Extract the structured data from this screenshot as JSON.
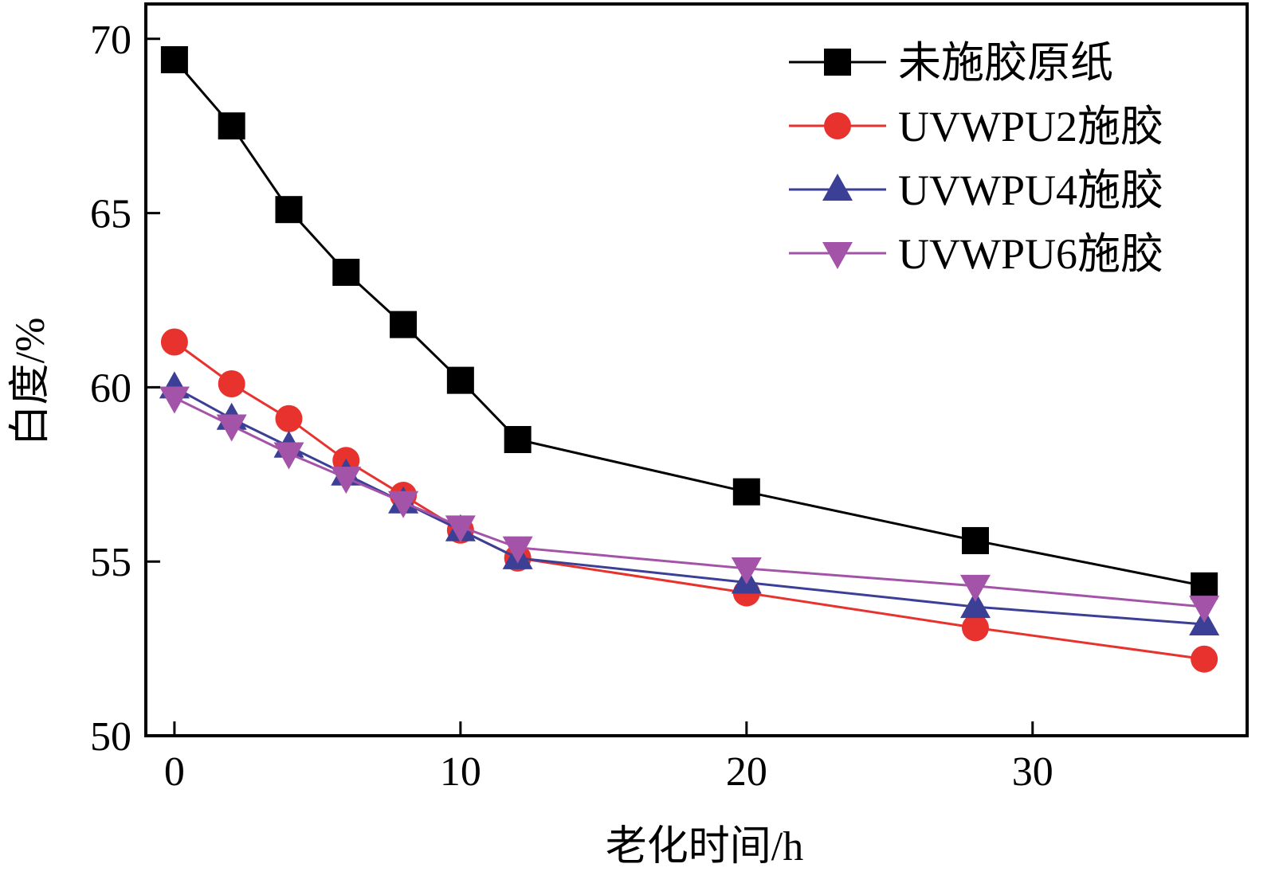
{
  "chart_data": {
    "type": "line",
    "title": "",
    "xlabel": "老化时间/h",
    "ylabel": "白度/%",
    "xlim": [
      -1,
      37.5
    ],
    "ylim": [
      50,
      71
    ],
    "xticks": [
      0,
      10,
      20,
      30
    ],
    "yticks": [
      50,
      55,
      60,
      65,
      70
    ],
    "grid": false,
    "legend_position": "top-right",
    "x": [
      0,
      2,
      4,
      6,
      8,
      10,
      12,
      20,
      28,
      36
    ],
    "series": [
      {
        "name": "未施胶原纸",
        "color": "#000000",
        "marker": "square",
        "values": [
          69.4,
          67.5,
          65.1,
          63.3,
          61.8,
          60.2,
          58.5,
          57.0,
          55.6,
          54.3
        ]
      },
      {
        "name": "UVWPU2施胶",
        "color": "#e8322e",
        "marker": "circle",
        "values": [
          61.3,
          60.1,
          59.1,
          57.9,
          56.9,
          55.9,
          55.1,
          54.1,
          53.1,
          52.2
        ]
      },
      {
        "name": "UVWPU4施胶",
        "color": "#3b3f96",
        "marker": "triangle-up",
        "values": [
          60.0,
          59.1,
          58.3,
          57.5,
          56.7,
          55.9,
          55.1,
          54.4,
          53.7,
          53.2
        ]
      },
      {
        "name": "UVWPU6施胶",
        "color": "#a354a8",
        "marker": "triangle-down",
        "values": [
          59.7,
          58.9,
          58.1,
          57.4,
          56.7,
          56.0,
          55.4,
          54.8,
          54.3,
          53.7
        ]
      }
    ]
  }
}
